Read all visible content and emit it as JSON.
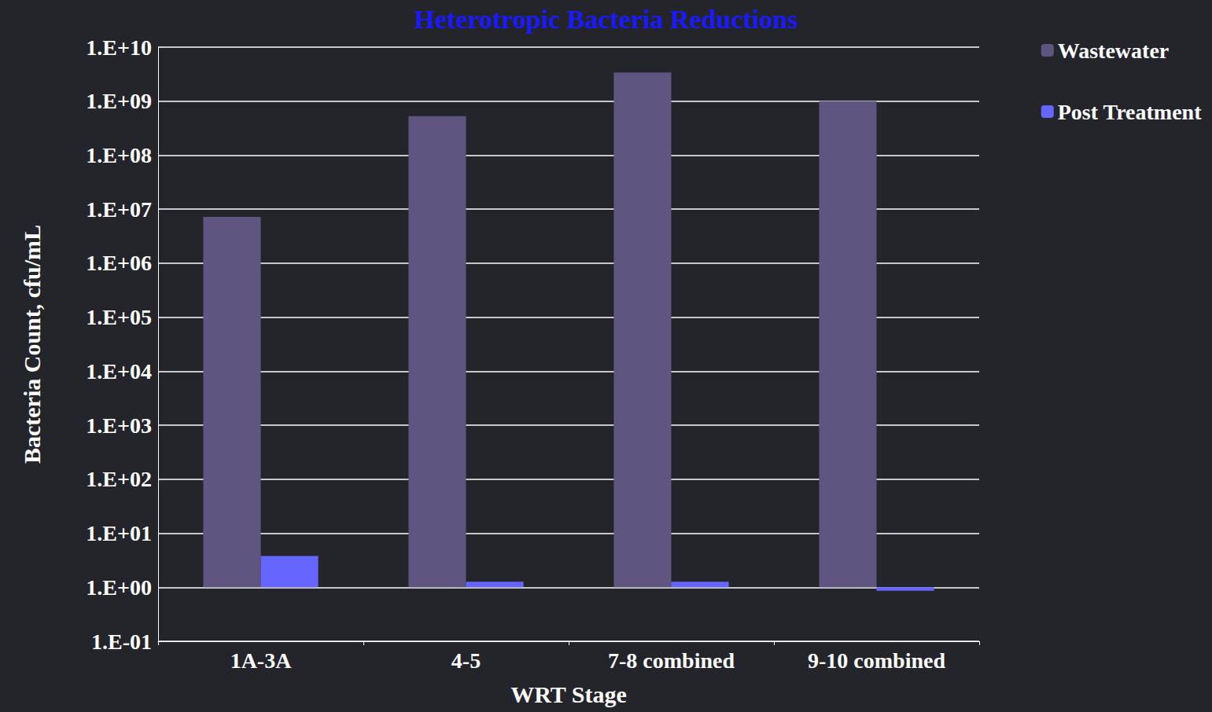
{
  "chart_data": {
    "type": "bar",
    "title": "Heterotropic Bacteria Reductions",
    "x_label": "WRT Stage",
    "y_label": "Bacteria Count, cfu/mL",
    "categories": [
      "1A-3A",
      "4-5",
      "7-8 combined",
      "9-10 combined"
    ],
    "series": [
      {
        "name": "Wastewater",
        "color": "#5e5580",
        "values": [
          7200000,
          530000000,
          3400000000,
          1000000000
        ]
      },
      {
        "name": "Post Treatment",
        "color": "#6666ff",
        "values": [
          3.8,
          1.27,
          1.27,
          0.86
        ]
      }
    ],
    "log": "y",
    "ylim": [
      0.1,
      10000000000
    ],
    "yticks": [
      {
        "value": 0.1,
        "label": "1.E-01"
      },
      {
        "value": 1,
        "label": "1.E+00"
      },
      {
        "value": 10,
        "label": "1.E+01"
      },
      {
        "value": 100,
        "label": "1.E+02"
      },
      {
        "value": 1000,
        "label": "1.E+03"
      },
      {
        "value": 10000,
        "label": "1.E+04"
      },
      {
        "value": 100000,
        "label": "1.E+05"
      },
      {
        "value": 1000000,
        "label": "1.E+06"
      },
      {
        "value": 10000000,
        "label": "1.E+07"
      },
      {
        "value": 100000000,
        "label": "1.E+08"
      },
      {
        "value": 1000000000,
        "label": "1.E+09"
      },
      {
        "value": 10000000000,
        "label": "1.E+10"
      }
    ],
    "grid": true,
    "legend": "right"
  }
}
